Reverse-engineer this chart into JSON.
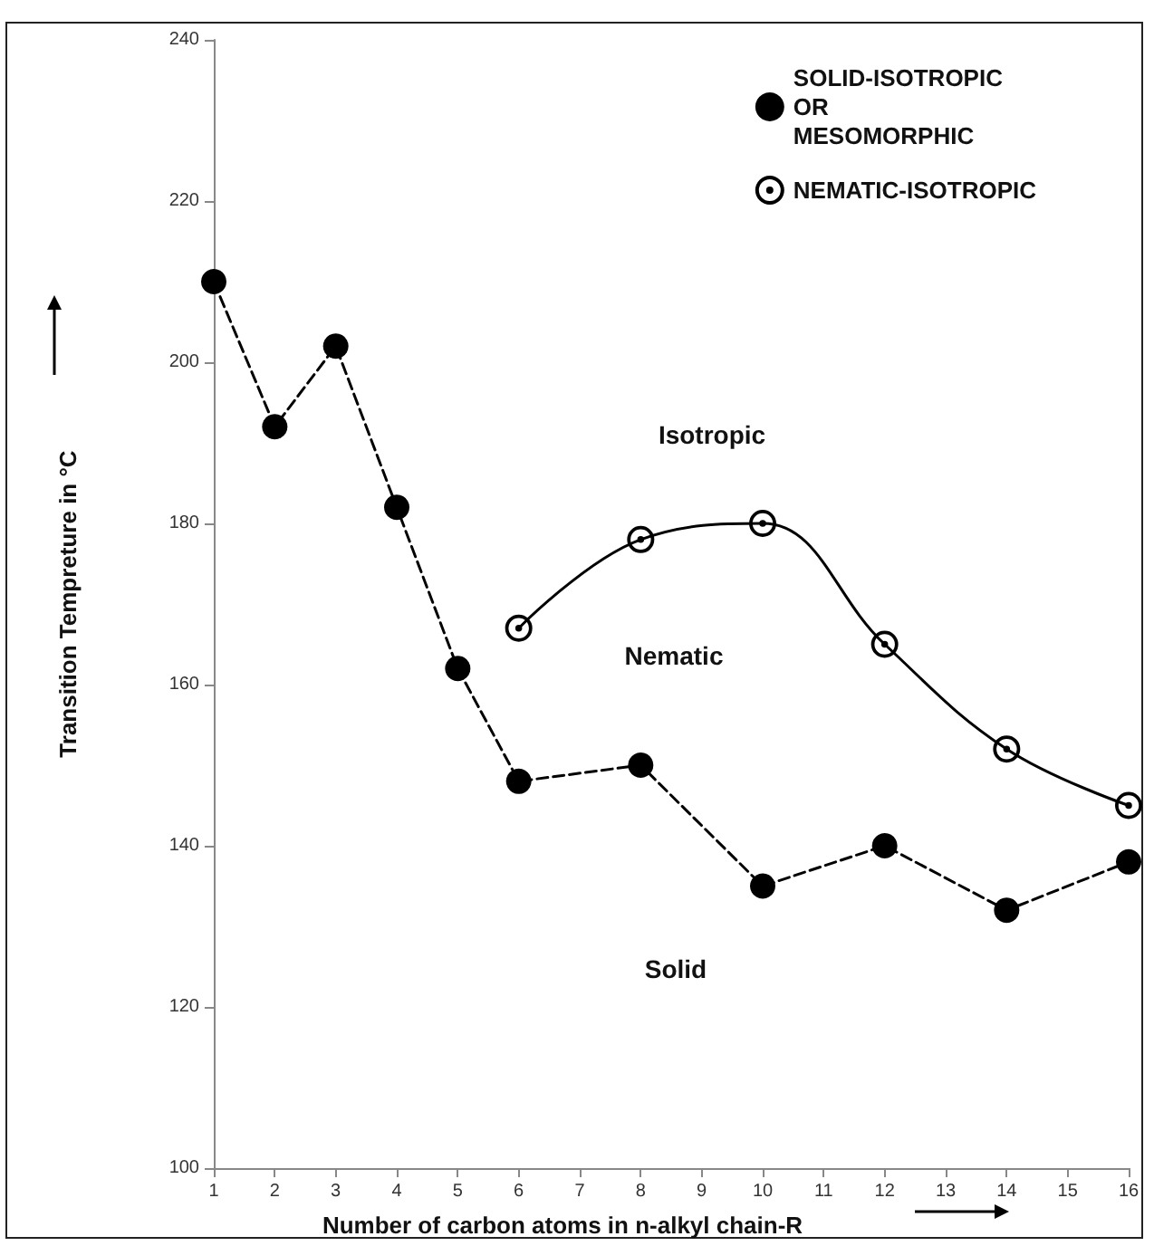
{
  "chart_data": {
    "type": "line",
    "xlabel": "Number of carbon atoms in n-alkyl chain-R",
    "ylabel": "Transition Tempreture in °C",
    "xlim": [
      1,
      16
    ],
    "xticks": [
      1,
      2,
      3,
      4,
      5,
      6,
      7,
      8,
      9,
      10,
      11,
      12,
      13,
      14,
      15,
      16
    ],
    "ylim": [
      100,
      240
    ],
    "yticks": [
      100,
      120,
      140,
      160,
      180,
      200,
      220,
      240
    ],
    "grid": false,
    "legend": "top right",
    "series": [
      {
        "name": "SOLID-ISOTROPIC\nOR\nMESOMORPHIC",
        "color": "#000000",
        "marker": "circle",
        "line_style": "dashed",
        "x": [
          1,
          2,
          3,
          4,
          5,
          6,
          8,
          10,
          12,
          14,
          16
        ],
        "values": [
          210,
          192,
          202,
          182,
          162,
          148,
          150,
          135,
          140,
          132,
          138
        ]
      },
      {
        "name": "NEMATIC-ISOTROPIC",
        "color": "#000000",
        "marker": "circle-dot",
        "line_style": "solid",
        "x": [
          6,
          8,
          10,
          12,
          14,
          16
        ],
        "values": [
          167,
          178,
          180,
          165,
          152,
          145
        ]
      }
    ],
    "annotations": [
      "Isotropic",
      "Nematic",
      "Solid"
    ]
  }
}
